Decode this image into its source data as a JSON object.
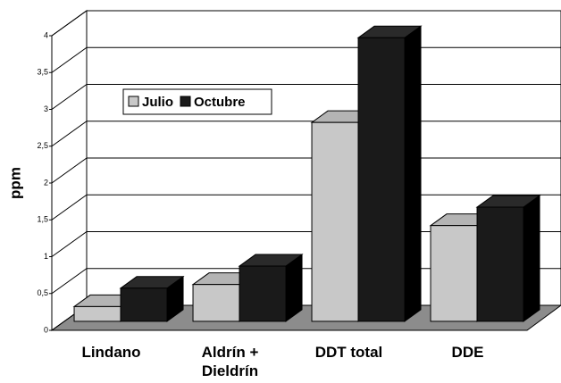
{
  "chart_data": {
    "type": "bar3d",
    "y_label": "ppm",
    "categories": [
      "Lindano",
      "Aldrín + Dieldrín",
      "DDT total",
      "DDE"
    ],
    "series": [
      {
        "name": "Julio",
        "color": "#c8c8c8",
        "values": [
          0.2,
          0.5,
          2.7,
          1.3
        ]
      },
      {
        "name": "Octubre",
        "color": "#1a1a1a",
        "values": [
          0.45,
          0.75,
          3.85,
          1.55
        ]
      }
    ],
    "ylim": [
      0,
      4
    ],
    "yticks": [
      0,
      {
        "value": 0.5,
        "label": "0,5"
      },
      1,
      {
        "value": 1.5,
        "label": "1,5"
      },
      2,
      {
        "value": 2.5,
        "label": "2,5"
      },
      3,
      {
        "value": 3.5,
        "label": "3,5"
      },
      4
    ],
    "grid": true,
    "legend": "top-left"
  }
}
